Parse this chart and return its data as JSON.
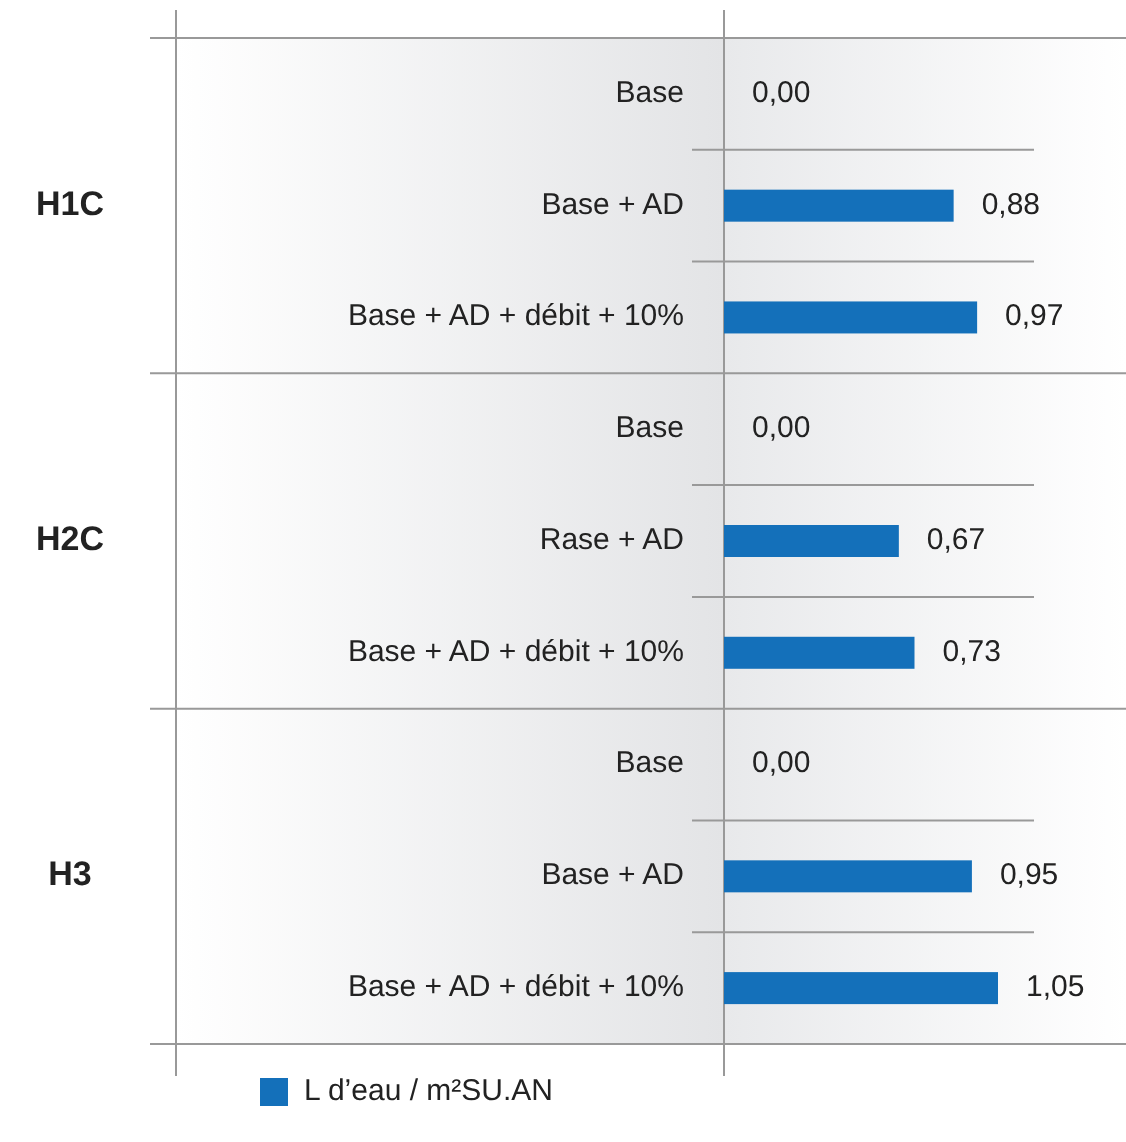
{
  "chart_data": {
    "type": "bar",
    "orientation": "horizontal",
    "categories": [
      "Base",
      "Base + AD",
      "Base + AD + débit + 10%",
      "Base",
      "Rase + AD",
      "Base + AD + débit + 10%",
      "Base",
      "Base + AD",
      "Base + AD + débit + 10%"
    ],
    "series": [
      {
        "name": "L d’eau / m²SU.AN",
        "color": "#1470ba",
        "values": [
          0,
          0.88,
          0.97,
          0,
          0.67,
          0.73,
          0,
          0.95,
          1.05
        ],
        "value_labels": [
          "0,00",
          "0,88",
          "0,97",
          "0,00",
          "0,67",
          "0,73",
          "0,00",
          "0,95",
          "1,05"
        ]
      }
    ],
    "annotations": [
      "H1C",
      "H2C",
      "H3"
    ],
    "legend": "bottom left"
  }
}
